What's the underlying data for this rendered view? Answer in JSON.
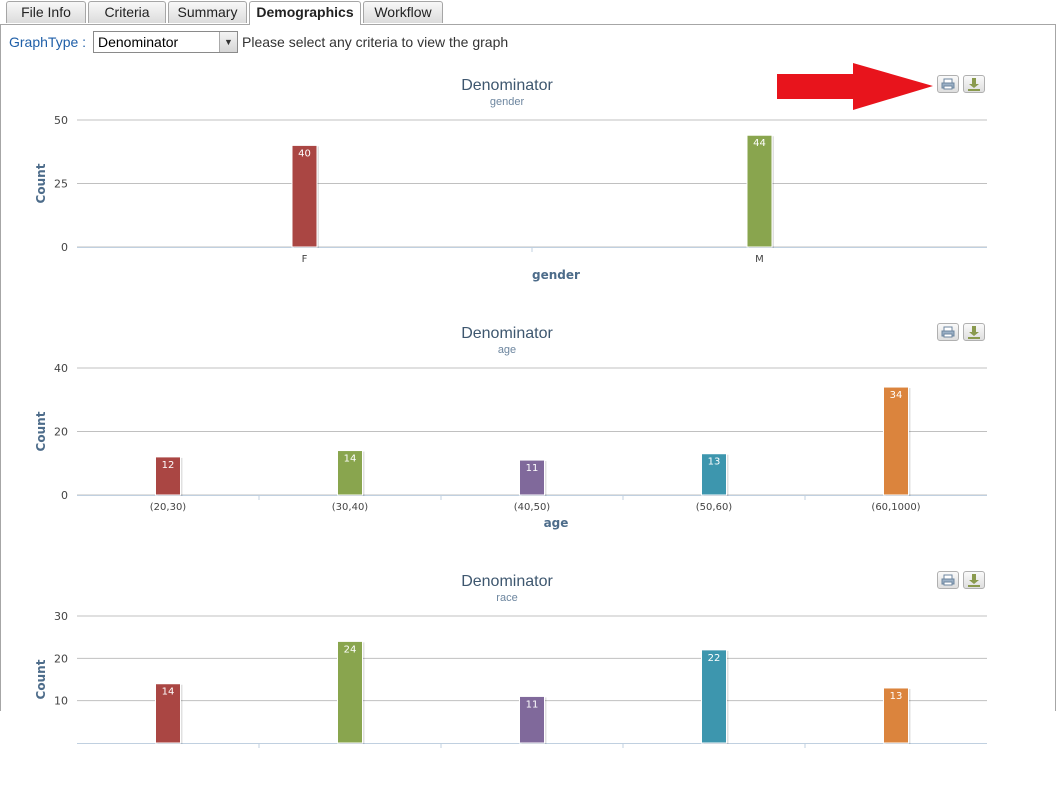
{
  "tabs": [
    {
      "label": "File Info",
      "active": false
    },
    {
      "label": "Criteria",
      "active": false
    },
    {
      "label": "Summary",
      "active": false
    },
    {
      "label": "Demographics",
      "active": true
    },
    {
      "label": "Workflow",
      "active": false
    }
  ],
  "graph_type": {
    "label": "GraphType :",
    "selected": "Denominator",
    "hint": "Please select any criteria to view the graph"
  },
  "icons": {
    "print": "print-icon",
    "download": "download-icon",
    "annotation": "red-arrow-icon"
  },
  "colors": {
    "tab_active_text": "#000000",
    "accent_label": "#1f5fa8",
    "annotation_arrow": "#e8141c"
  },
  "chart_data": [
    {
      "type": "bar",
      "title": "Denominator",
      "subtitle": "gender",
      "xlabel": "gender",
      "ylabel": "Count",
      "ylim": [
        0,
        50
      ],
      "yticks": [
        0,
        25,
        50
      ],
      "categories": [
        "F",
        "M"
      ],
      "values": [
        40,
        44
      ],
      "colors": [
        "#aa4643",
        "#89a54e"
      ],
      "grid": true
    },
    {
      "type": "bar",
      "title": "Denominator",
      "subtitle": "age",
      "xlabel": "age",
      "ylabel": "Count",
      "ylim": [
        0,
        40
      ],
      "yticks": [
        0,
        20,
        40
      ],
      "categories": [
        "(20,30)",
        "(30,40)",
        "(40,50)",
        "(50,60)",
        "(60,1000)"
      ],
      "values": [
        12,
        14,
        11,
        13,
        34
      ],
      "colors": [
        "#aa4643",
        "#89a54e",
        "#80699b",
        "#3d96ae",
        "#db843d"
      ],
      "grid": true
    },
    {
      "type": "bar",
      "title": "Denominator",
      "subtitle": "race",
      "xlabel": "",
      "ylabel": "Count",
      "ylim": [
        0,
        30
      ],
      "yticks": [
        10,
        20,
        30
      ],
      "categories": [
        "",
        "",
        "",
        "",
        ""
      ],
      "values": [
        14,
        24,
        11,
        22,
        13
      ],
      "colors": [
        "#aa4643",
        "#89a54e",
        "#80699b",
        "#3d96ae",
        "#db843d"
      ],
      "grid": true
    }
  ]
}
